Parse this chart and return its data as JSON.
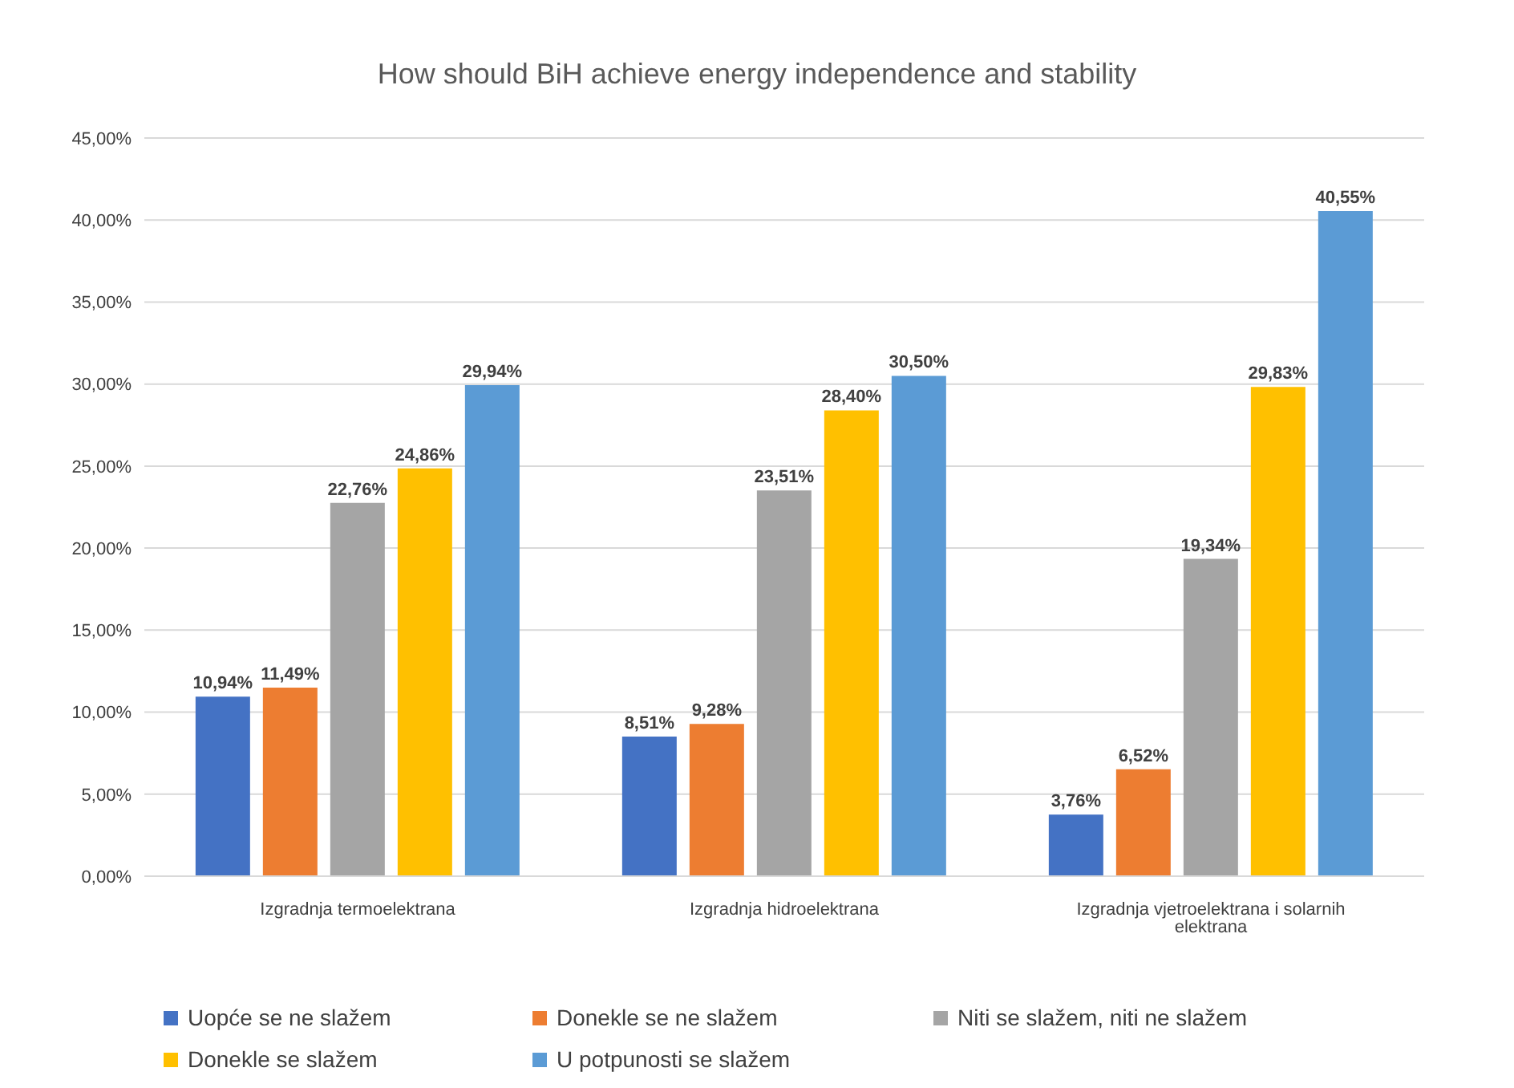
{
  "chart_data": {
    "type": "bar",
    "title": "How should BiH achieve energy independence and stability",
    "categories": [
      "Izgradnja termoelektrana",
      "Izgradnja hidroelektrana",
      "Izgradnja vjetroelektrana i solarnih elektrana"
    ],
    "series": [
      {
        "name": "Uopće se ne slažem",
        "color": "#4472c4",
        "values": [
          10.94,
          8.51,
          3.76
        ],
        "value_labels": [
          "10,94%",
          "8,51%",
          "3,76%"
        ]
      },
      {
        "name": "Donekle se ne slažem",
        "color": "#ed7d31",
        "values": [
          11.49,
          9.28,
          6.52
        ],
        "value_labels": [
          "11,49%",
          "9,28%",
          "6,52%"
        ]
      },
      {
        "name": "Niti se slažem, niti ne slažem",
        "color": "#a5a5a5",
        "values": [
          22.76,
          23.51,
          19.34
        ],
        "value_labels": [
          "22,76%",
          "23,51%",
          "19,34%"
        ]
      },
      {
        "name": "Donekle se slažem",
        "color": "#ffc000",
        "values": [
          24.86,
          28.4,
          29.83
        ],
        "value_labels": [
          "24,86%",
          "28,40%",
          "29,83%"
        ]
      },
      {
        "name": "U potpunosti se slažem",
        "color": "#5b9bd5",
        "values": [
          29.94,
          30.5,
          40.55
        ],
        "value_labels": [
          "29,94%",
          "30,50%",
          "40,55%"
        ]
      }
    ],
    "ylim": [
      0,
      45
    ],
    "yticks": [
      {
        "value": 0,
        "label": "0,00%"
      },
      {
        "value": 5,
        "label": "5,00%"
      },
      {
        "value": 10,
        "label": "10,00%"
      },
      {
        "value": 15,
        "label": "15,00%"
      },
      {
        "value": 20,
        "label": "20,00%"
      },
      {
        "value": 25,
        "label": "25,00%"
      },
      {
        "value": 30,
        "label": "30,00%"
      },
      {
        "value": 35,
        "label": "35,00%"
      },
      {
        "value": 40,
        "label": "40,00%"
      },
      {
        "value": 45,
        "label": "45,00%"
      }
    ],
    "grid": "y",
    "legend": "bottom"
  }
}
